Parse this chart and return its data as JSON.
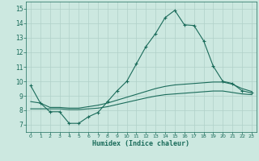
{
  "xlabel": "Humidex (Indice chaleur)",
  "background_color": "#cce8e0",
  "grid_color": "#b0d0c8",
  "line_color": "#1a6b5a",
  "xlim": [
    -0.5,
    23.5
  ],
  "ylim": [
    6.5,
    15.5
  ],
  "xticks": [
    0,
    1,
    2,
    3,
    4,
    5,
    6,
    7,
    8,
    9,
    10,
    11,
    12,
    13,
    14,
    15,
    16,
    17,
    18,
    19,
    20,
    21,
    22,
    23
  ],
  "yticks": [
    7,
    8,
    9,
    10,
    11,
    12,
    13,
    14,
    15
  ],
  "line1_x": [
    0,
    1,
    2,
    3,
    4,
    5,
    6,
    7,
    8,
    9,
    10,
    11,
    12,
    13,
    14,
    15,
    16,
    17,
    18,
    19,
    20,
    21,
    22,
    23
  ],
  "line1_y": [
    9.7,
    8.5,
    7.9,
    7.9,
    7.1,
    7.1,
    7.55,
    7.85,
    8.6,
    9.35,
    10.0,
    11.2,
    12.4,
    13.3,
    14.4,
    14.9,
    13.9,
    13.85,
    12.8,
    11.05,
    10.0,
    9.85,
    9.35,
    9.2
  ],
  "line2_x": [
    0,
    1,
    2,
    3,
    4,
    5,
    6,
    7,
    8,
    9,
    10,
    11,
    12,
    13,
    14,
    15,
    16,
    17,
    18,
    19,
    20,
    21,
    22,
    23
  ],
  "line2_y": [
    8.6,
    8.5,
    8.2,
    8.2,
    8.15,
    8.15,
    8.25,
    8.35,
    8.5,
    8.7,
    8.9,
    9.1,
    9.3,
    9.5,
    9.65,
    9.75,
    9.8,
    9.85,
    9.9,
    9.95,
    9.95,
    9.8,
    9.5,
    9.3
  ],
  "line3_x": [
    0,
    1,
    2,
    3,
    4,
    5,
    6,
    7,
    8,
    9,
    10,
    11,
    12,
    13,
    14,
    15,
    16,
    17,
    18,
    19,
    20,
    21,
    22,
    23
  ],
  "line3_y": [
    8.1,
    8.1,
    8.1,
    8.1,
    8.05,
    8.05,
    8.1,
    8.15,
    8.25,
    8.4,
    8.55,
    8.7,
    8.85,
    8.98,
    9.08,
    9.13,
    9.18,
    9.23,
    9.28,
    9.33,
    9.33,
    9.23,
    9.13,
    9.08
  ]
}
